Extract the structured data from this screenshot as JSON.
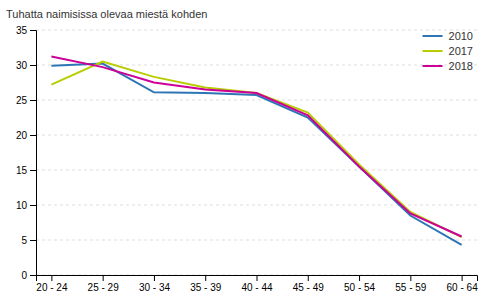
{
  "chart_data": {
    "type": "line",
    "ylabel": "Tuhatta naimisissa olevaa miestä kohden",
    "categories": [
      "20 - 24",
      "25 - 29",
      "30 - 34",
      "35 - 39",
      "40 - 44",
      "45 - 49",
      "50 - 54",
      "55 - 59",
      "60 - 64"
    ],
    "series": [
      {
        "name": "2010",
        "color": "#2e75b6",
        "values": [
          29.9,
          30.2,
          26.1,
          26.0,
          25.7,
          22.5,
          15.5,
          8.5,
          4.3
        ]
      },
      {
        "name": "2017",
        "color": "#b8cc00",
        "values": [
          27.2,
          30.5,
          28.3,
          26.8,
          26.0,
          23.2,
          15.8,
          9.0,
          5.4
        ]
      },
      {
        "name": "2018",
        "color": "#cc0099",
        "values": [
          31.2,
          29.7,
          27.5,
          26.5,
          26.0,
          22.8,
          15.5,
          8.8,
          5.5
        ]
      }
    ],
    "ylim": [
      0,
      35
    ],
    "yticks": [
      0,
      5,
      10,
      15,
      20,
      25,
      30,
      35
    ],
    "grid": true,
    "legend": "upper right"
  }
}
